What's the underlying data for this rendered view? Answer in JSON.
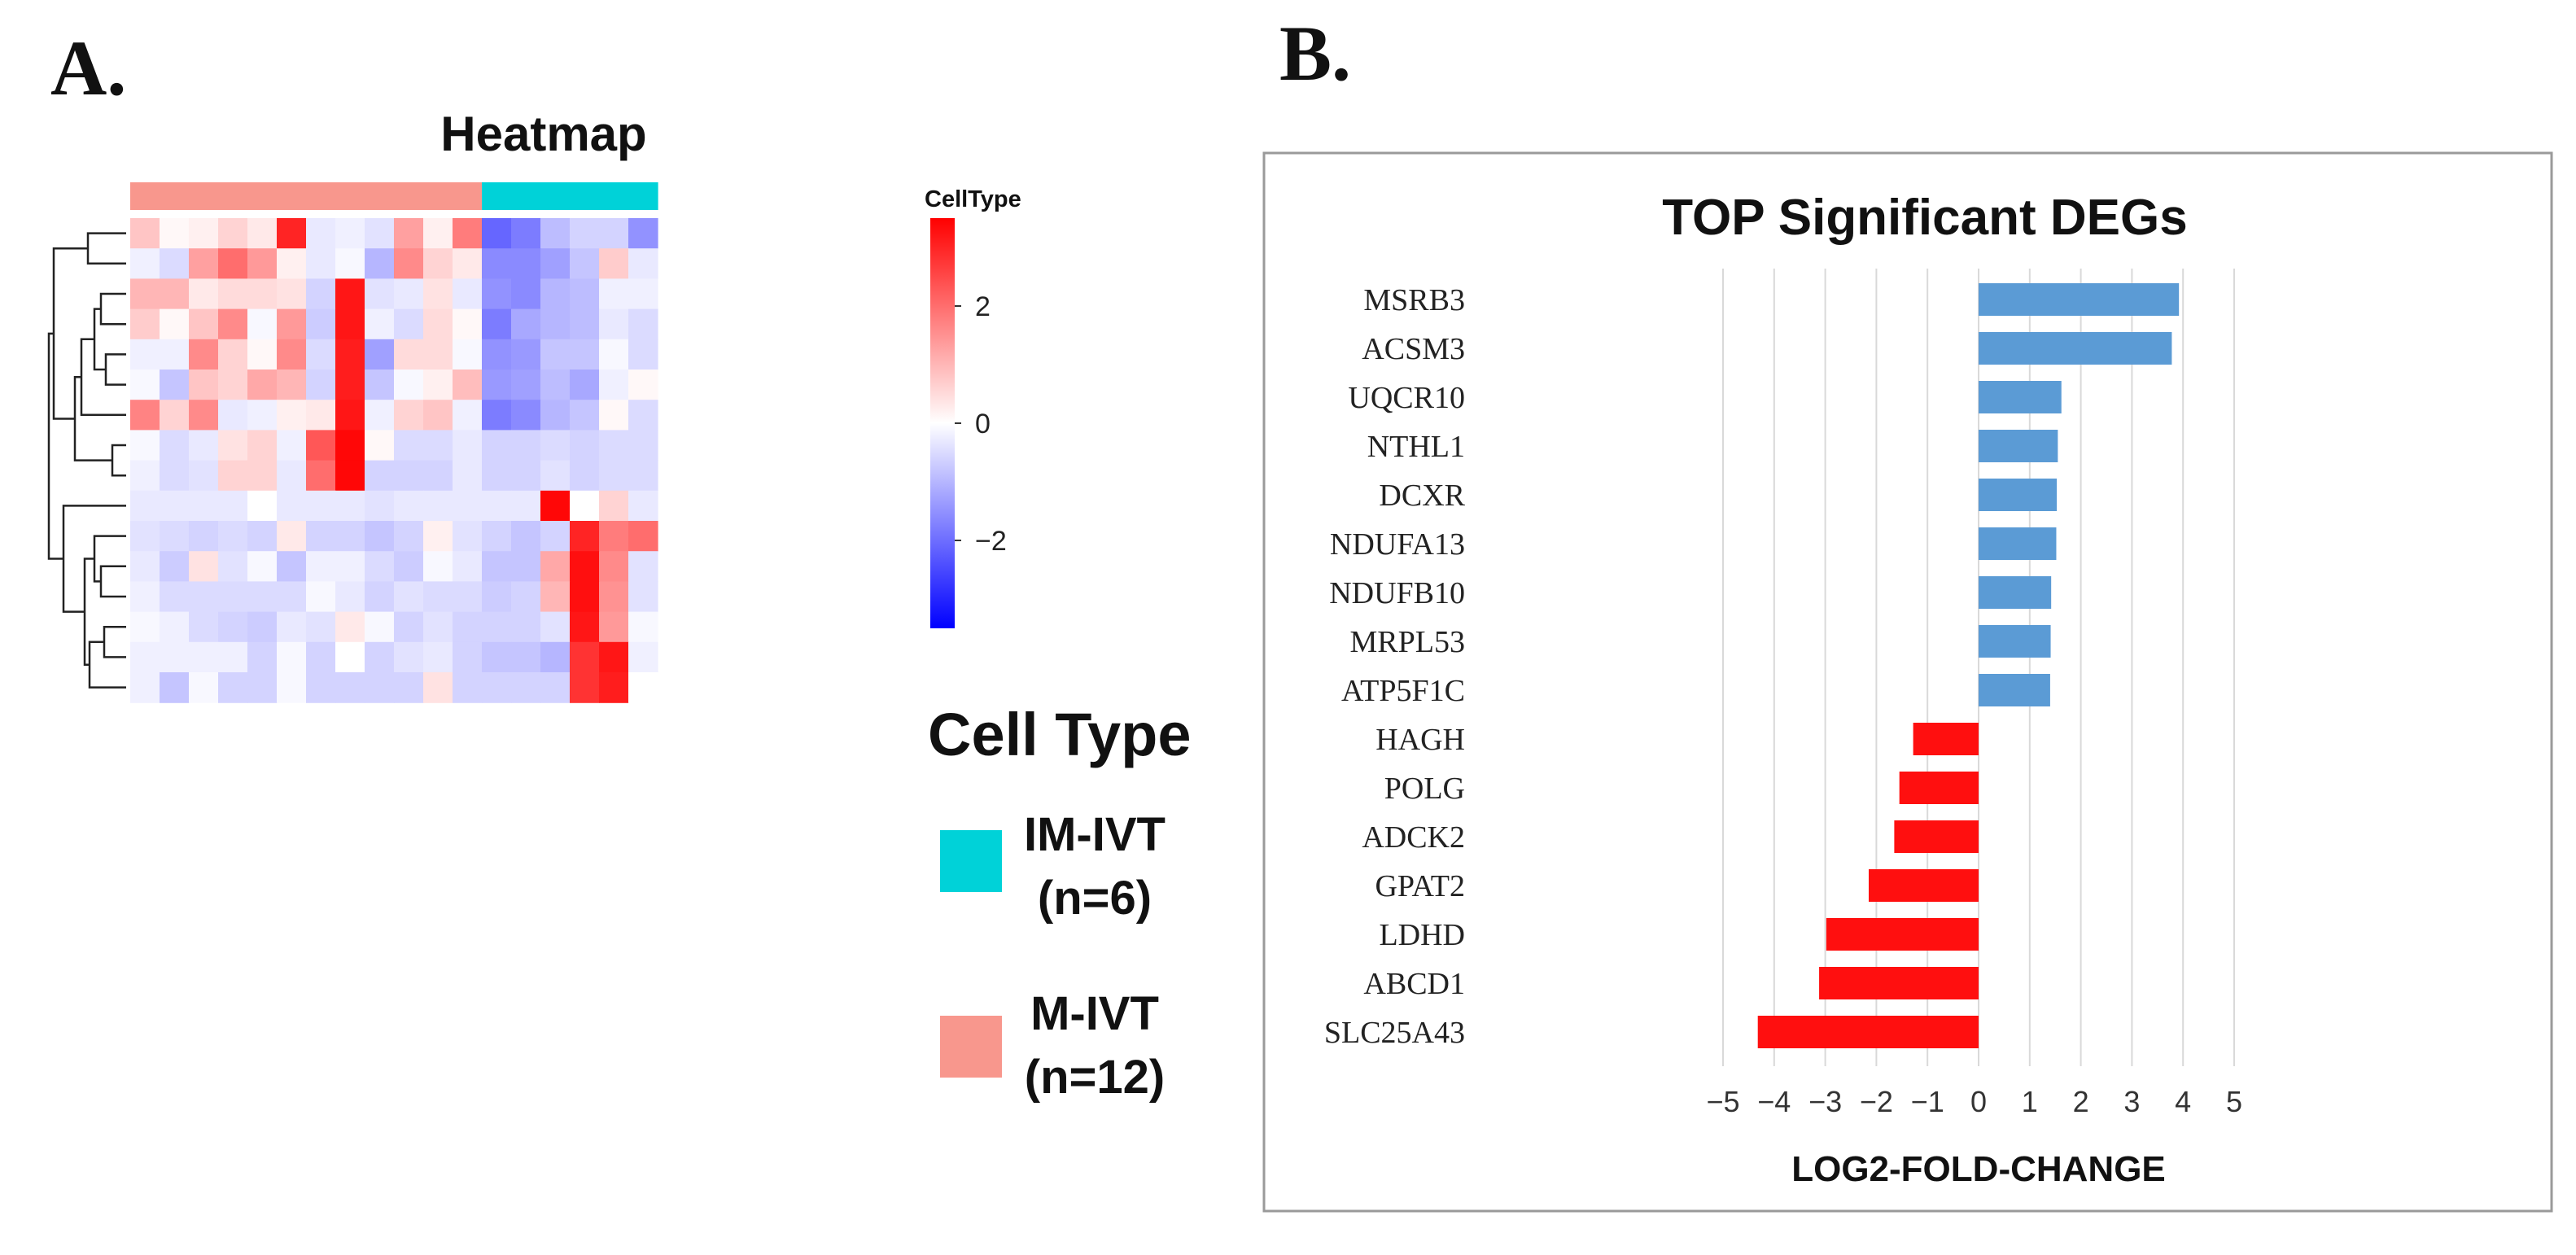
{
  "panel_a_label": "A.",
  "panel_b_label": "B.",
  "colors": {
    "m_ivt": "#f8978d",
    "im_ivt": "#00d2d8",
    "pos_bar": "#5b9bd5",
    "neg_bar": "#ff0f0f",
    "scale_low": "#0000ff",
    "scale_mid": "#ffffff",
    "scale_high": "#ff0000"
  },
  "chart_data": [
    {
      "type": "heatmap",
      "title": "Heatmap",
      "annotation_label": "CellType",
      "column_groups": [
        "M-IVT",
        "M-IVT",
        "M-IVT",
        "M-IVT",
        "M-IVT",
        "M-IVT",
        "M-IVT",
        "M-IVT",
        "M-IVT",
        "M-IVT",
        "M-IVT",
        "M-IVT",
        "IM-IVT",
        "IM-IVT",
        "IM-IVT",
        "IM-IVT",
        "IM-IVT",
        "IM-IVT"
      ],
      "color_range": [
        -3.5,
        3.5
      ],
      "colorbar_ticks": [
        {
          "value": 2,
          "label": "2"
        },
        {
          "value": 0,
          "label": "0"
        },
        {
          "value": -2,
          "label": "−2"
        }
      ],
      "values": [
        [
          0.8,
          0.1,
          0.2,
          0.6,
          0.3,
          3.0,
          -0.3,
          -0.2,
          -0.4,
          1.3,
          0.2,
          1.8,
          -2.1,
          -1.8,
          -0.9,
          -0.6,
          -0.6,
          -1.5
        ],
        [
          -0.2,
          -0.5,
          1.3,
          2.0,
          1.4,
          0.2,
          -0.3,
          -0.1,
          -1.0,
          1.6,
          0.6,
          0.3,
          -1.6,
          -1.6,
          -1.3,
          -0.8,
          0.7,
          -0.3
        ],
        [
          1.0,
          1.0,
          0.3,
          0.5,
          0.5,
          0.4,
          -0.6,
          3.2,
          -0.4,
          -0.3,
          0.4,
          -0.3,
          -1.5,
          -1.6,
          -1.0,
          -0.9,
          -0.2,
          -0.2
        ],
        [
          0.7,
          0.1,
          0.8,
          1.6,
          -0.1,
          1.4,
          -0.7,
          3.2,
          -0.2,
          -0.5,
          0.5,
          0.1,
          -1.8,
          -1.2,
          -1.0,
          -0.9,
          -0.3,
          -0.5
        ],
        [
          -0.2,
          -0.2,
          1.6,
          0.6,
          0.1,
          1.6,
          -0.5,
          3.1,
          -1.3,
          0.5,
          0.5,
          -0.1,
          -1.5,
          -1.4,
          -0.8,
          -0.8,
          -0.1,
          -0.5
        ],
        [
          -0.1,
          -0.8,
          0.8,
          0.6,
          1.2,
          1.0,
          -0.6,
          3.1,
          -0.8,
          -0.1,
          0.2,
          0.9,
          -1.4,
          -1.3,
          -0.9,
          -1.2,
          -0.2,
          0.1
        ],
        [
          1.7,
          0.6,
          1.6,
          -0.3,
          -0.2,
          0.2,
          0.3,
          3.2,
          -0.2,
          0.6,
          0.8,
          -0.2,
          -1.8,
          -1.6,
          -1.0,
          -0.8,
          0.1,
          -0.5
        ],
        [
          -0.1,
          -0.5,
          -0.3,
          0.4,
          0.6,
          -0.2,
          2.3,
          3.4,
          0.1,
          -0.5,
          -0.5,
          -0.3,
          -0.6,
          -0.6,
          -0.5,
          -0.6,
          -0.5,
          -0.5
        ],
        [
          -0.2,
          -0.5,
          -0.4,
          0.6,
          0.6,
          -0.3,
          2.0,
          3.4,
          -0.6,
          -0.6,
          -0.6,
          -0.3,
          -0.6,
          -0.6,
          -0.4,
          -0.6,
          -0.5,
          -0.5
        ],
        [
          -0.3,
          -0.3,
          -0.3,
          -0.3,
          0.0,
          -0.3,
          -0.3,
          -0.3,
          -0.4,
          -0.3,
          -0.3,
          -0.3,
          -0.3,
          -0.3,
          3.4,
          0.0,
          0.6,
          -0.3
        ],
        [
          -0.4,
          -0.5,
          -0.6,
          -0.5,
          -0.6,
          0.3,
          -0.6,
          -0.6,
          -0.8,
          -0.6,
          0.2,
          -0.4,
          -0.6,
          -0.8,
          -0.6,
          3.0,
          1.8,
          2.0
        ],
        [
          -0.3,
          -0.7,
          0.4,
          -0.4,
          -0.1,
          -0.8,
          -0.2,
          -0.2,
          -0.5,
          -0.7,
          -0.1,
          -0.3,
          -0.8,
          -0.8,
          1.2,
          3.3,
          1.6,
          -0.4
        ],
        [
          -0.2,
          -0.5,
          -0.5,
          -0.5,
          -0.5,
          -0.5,
          -0.1,
          -0.3,
          -0.6,
          -0.4,
          -0.5,
          -0.5,
          -0.7,
          -0.6,
          1.0,
          3.3,
          1.5,
          -0.4
        ],
        [
          -0.1,
          -0.2,
          -0.5,
          -0.6,
          -0.7,
          -0.3,
          -0.4,
          0.3,
          -0.1,
          -0.6,
          -0.4,
          -0.6,
          -0.6,
          -0.6,
          -0.4,
          3.2,
          1.4,
          -0.1
        ],
        [
          -0.2,
          -0.2,
          -0.2,
          -0.2,
          -0.6,
          -0.1,
          -0.6,
          0.0,
          -0.6,
          -0.4,
          -0.3,
          -0.6,
          -0.8,
          -0.8,
          -1.0,
          2.8,
          3.2,
          -0.2
        ],
        [
          -0.2,
          -0.8,
          -0.1,
          -0.6,
          -0.6,
          -0.1,
          -0.6,
          -0.6,
          -0.6,
          -0.6,
          0.4,
          -0.6,
          -0.6,
          -0.6,
          -0.6,
          2.8,
          3.1,
          0.0
        ]
      ],
      "legend": {
        "title": "Cell Type",
        "entries": [
          {
            "line1": "IM-IVT",
            "line2": "(n=6)",
            "color": "#00d2d8"
          },
          {
            "line1": "M-IVT",
            "line2": "(n=12)",
            "color": "#f8978d"
          }
        ]
      }
    },
    {
      "type": "bar",
      "orientation": "horizontal",
      "title": "TOP Significant DEGs",
      "xlabel": "LOG2-FOLD-CHANGE",
      "xlim": [
        -5,
        5
      ],
      "xticks": [
        {
          "value": -5,
          "label": "−5"
        },
        {
          "value": -4,
          "label": "−4"
        },
        {
          "value": -3,
          "label": "−3"
        },
        {
          "value": -2,
          "label": "−2"
        },
        {
          "value": -1,
          "label": "−1"
        },
        {
          "value": 0,
          "label": "0"
        },
        {
          "value": 1,
          "label": "1"
        },
        {
          "value": 2,
          "label": "2"
        },
        {
          "value": 3,
          "label": "3"
        },
        {
          "value": 4,
          "label": "4"
        },
        {
          "value": 5,
          "label": "5"
        }
      ],
      "categories": [
        "MSRB3",
        "ACSM3",
        "UQCR10",
        "NTHL1",
        "DCXR",
        "NDUFA13",
        "NDUFB10",
        "MRPL53",
        "ATP5F1C",
        "HAGH",
        "POLG",
        "ADCK2",
        "GPAT2",
        "LDHD",
        "ABCD1",
        "SLC25A43"
      ],
      "values": [
        3.92,
        3.78,
        1.62,
        1.55,
        1.53,
        1.52,
        1.42,
        1.41,
        1.4,
        -1.28,
        -1.55,
        -1.65,
        -2.15,
        -2.98,
        -3.12,
        -4.32
      ]
    }
  ]
}
